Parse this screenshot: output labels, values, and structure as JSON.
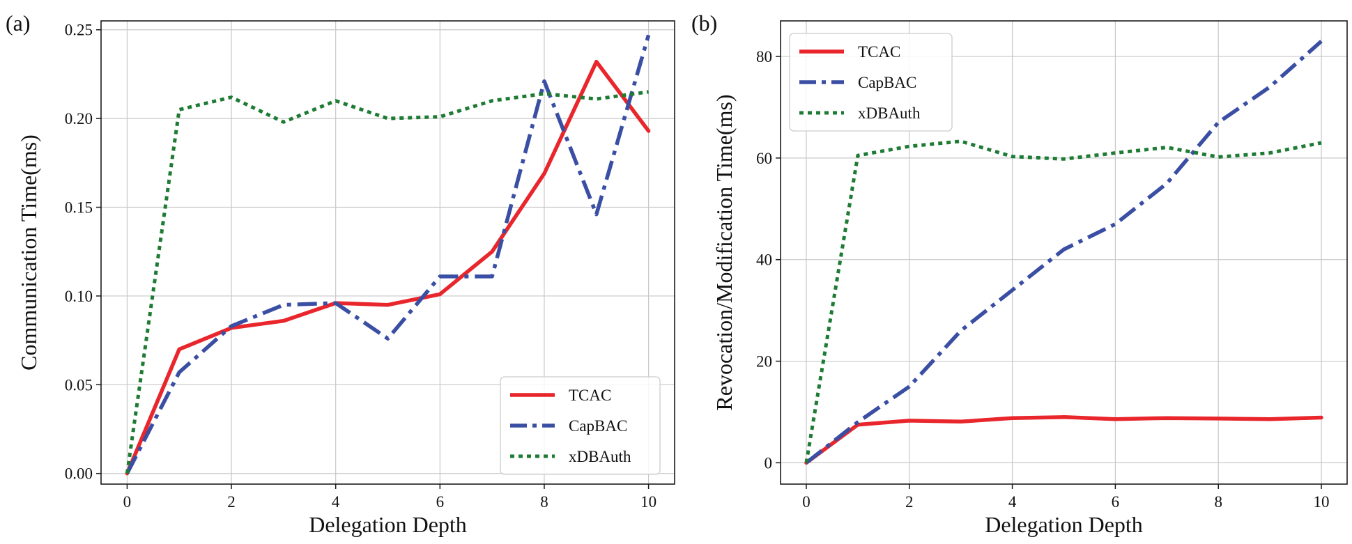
{
  "chart_data": [
    {
      "panel_label": "(a)",
      "type": "line",
      "xlabel": "Delegation Depth",
      "ylabel": "Communication Time(ms)",
      "xlim": [
        -0.5,
        10.5
      ],
      "ylim": [
        -0.006,
        0.255
      ],
      "xticks": [
        0,
        2,
        4,
        6,
        8,
        10
      ],
      "xtick_labels": [
        "0",
        "2",
        "4",
        "6",
        "8",
        "10"
      ],
      "yticks": [
        0.0,
        0.05,
        0.1,
        0.15,
        0.2,
        0.25
      ],
      "ytick_labels": [
        "0.00",
        "0.05",
        "0.10",
        "0.15",
        "0.20",
        "0.25"
      ],
      "grid": true,
      "legend_position": "lower-right",
      "x": [
        0,
        1,
        2,
        3,
        4,
        5,
        6,
        7,
        8,
        9,
        10
      ],
      "series": [
        {
          "name": "TCAC",
          "color": "#e8262b",
          "style": "solid",
          "values": [
            0.0,
            0.07,
            0.082,
            0.086,
            0.096,
            0.095,
            0.101,
            0.125,
            0.169,
            0.232,
            0.193
          ]
        },
        {
          "name": "CapBAC",
          "color": "#3a4ea3",
          "style": "dashdot",
          "values": [
            0.0,
            0.057,
            0.083,
            0.095,
            0.096,
            0.076,
            0.111,
            0.111,
            0.221,
            0.146,
            0.247
          ]
        },
        {
          "name": "xDBAuth",
          "color": "#1e7b34",
          "style": "dotted",
          "values": [
            0.0,
            0.205,
            0.212,
            0.198,
            0.21,
            0.2,
            0.201,
            0.21,
            0.214,
            0.211,
            0.215
          ]
        }
      ]
    },
    {
      "panel_label": "(b)",
      "type": "line",
      "xlabel": "Delegation Depth",
      "ylabel": "Revocation/Modification Time(ms)",
      "xlim": [
        -0.5,
        10.5
      ],
      "ylim": [
        -4.2,
        87
      ],
      "xticks": [
        0,
        2,
        4,
        6,
        8,
        10
      ],
      "xtick_labels": [
        "0",
        "2",
        "4",
        "6",
        "8",
        "10"
      ],
      "yticks": [
        0,
        20,
        40,
        60,
        80
      ],
      "ytick_labels": [
        "0",
        "20",
        "40",
        "60",
        "80"
      ],
      "grid": true,
      "legend_position": "upper-left",
      "x": [
        0,
        1,
        2,
        3,
        4,
        5,
        6,
        7,
        8,
        9,
        10
      ],
      "series": [
        {
          "name": "TCAC",
          "color": "#e8262b",
          "style": "solid",
          "values": [
            0,
            7.5,
            8.3,
            8.1,
            8.8,
            9.0,
            8.6,
            8.8,
            8.7,
            8.6,
            8.9
          ]
        },
        {
          "name": "CapBAC",
          "color": "#3a4ea3",
          "style": "dashdot",
          "values": [
            0,
            8,
            15,
            26,
            34,
            42,
            47,
            55,
            67,
            74,
            83
          ]
        },
        {
          "name": "xDBAuth",
          "color": "#1e7b34",
          "style": "dotted",
          "values": [
            0,
            60.5,
            62.3,
            63.3,
            60.3,
            59.8,
            61.0,
            62.1,
            60.2,
            61.0,
            63.0
          ]
        }
      ]
    }
  ]
}
